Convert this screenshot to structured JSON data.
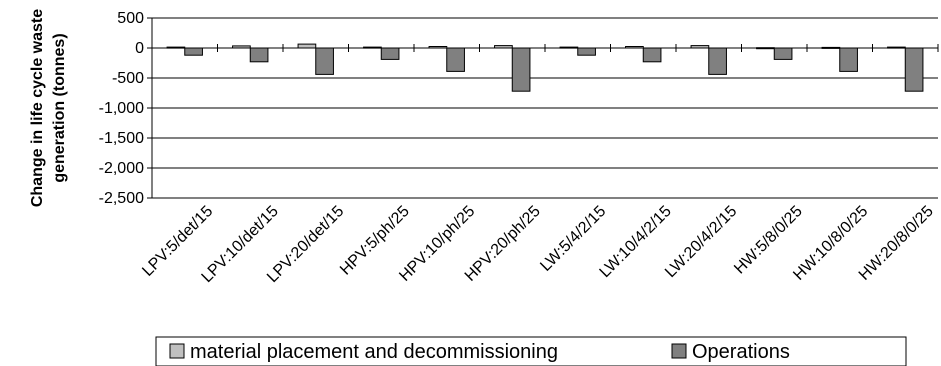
{
  "chart_data": {
    "type": "bar",
    "ylabel": "Change in life cycle waste generation (tonnes)",
    "ylabel_lines": [
      "Change in life cycle waste",
      "generation (tonnes)"
    ],
    "ylim": [
      -2500,
      500
    ],
    "yticks": [
      500,
      0,
      -500,
      -1000,
      -1500,
      -2000,
      -2500
    ],
    "ytick_labels": [
      "500",
      "0",
      "-500",
      "-1,000",
      "-1,500",
      "-2,000",
      "-2,500"
    ],
    "grid": true,
    "legend_position": "bottom",
    "categories": [
      "LPV:5/det/15",
      "LPV:10/det/15",
      "LPV:20/det/15",
      "HPV:5/ph/25",
      "HPV:10/ph/25",
      "HPV:20/ph/25",
      "LW:5/4/2/15",
      "LW:10/4/2/15",
      "LW:20/4/2/15",
      "HW:5/8/0/25",
      "HW:10/8/0/25",
      "HW:20/8/0/25"
    ],
    "series": [
      {
        "name": "material placement and decommissioning",
        "color": "#c0c0c0",
        "values": [
          15,
          35,
          65,
          15,
          25,
          40,
          15,
          25,
          40,
          5,
          10,
          15
        ]
      },
      {
        "name": "Operations",
        "color": "#808080",
        "values": [
          -120,
          -230,
          -440,
          -190,
          -390,
          -720,
          -120,
          -230,
          -440,
          -190,
          -390,
          -720
        ]
      }
    ]
  }
}
